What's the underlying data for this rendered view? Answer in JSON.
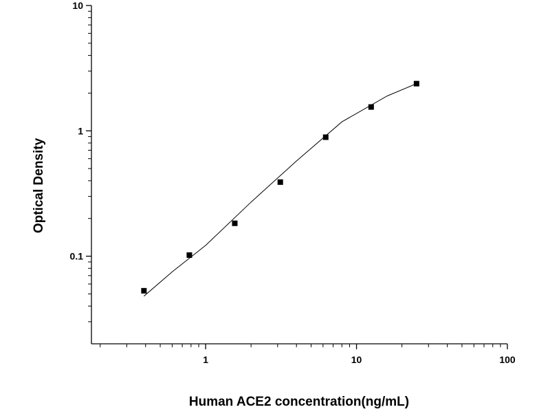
{
  "chart_data": {
    "type": "scatter",
    "x_label": "Human ACE2 concentration(ng/mL)",
    "y_label": "Optical Density",
    "xscale": "log",
    "yscale": "log",
    "xlim": [
      0.175,
      100
    ],
    "ylim": [
      0.02,
      10
    ],
    "xticks": [
      1,
      10,
      100
    ],
    "yticks": [
      0.1,
      1,
      10
    ],
    "xminorticks": [
      0.2,
      0.3,
      0.4,
      0.5,
      0.6,
      0.7,
      0.8,
      0.9,
      2,
      3,
      4,
      5,
      6,
      7,
      8,
      9,
      20,
      30,
      40,
      50,
      60,
      70,
      80,
      90
    ],
    "yminorticks": [
      0.03,
      0.04,
      0.05,
      0.06,
      0.07,
      0.08,
      0.09,
      0.2,
      0.3,
      0.4,
      0.5,
      0.6,
      0.7,
      0.8,
      0.9,
      2,
      3,
      4,
      5,
      6,
      7,
      8,
      9
    ],
    "color": "#000000",
    "x": [
      0.39,
      0.78,
      1.56,
      3.125,
      6.25,
      12.5,
      25
    ],
    "values": [
      0.053,
      0.102,
      0.183,
      0.39,
      0.89,
      1.55,
      2.38
    ],
    "fit": {
      "type": "line",
      "x": [
        0.39,
        0.6,
        1,
        2,
        4,
        8,
        16,
        25
      ],
      "values": [
        0.048,
        0.075,
        0.122,
        0.27,
        0.575,
        1.18,
        1.9,
        2.38
      ]
    }
  }
}
